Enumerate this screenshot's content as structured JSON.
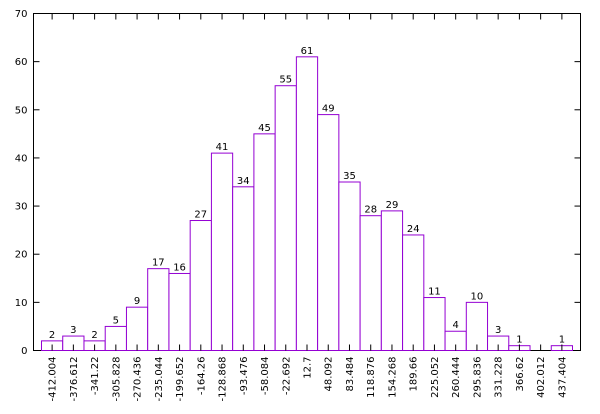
{
  "chart_data": {
    "type": "bar",
    "categories": [
      "-412.004",
      "-376.612",
      "-341.22",
      "-305.828",
      "-270.436",
      "-235.044",
      "-199.652",
      "-164.26",
      "-128.868",
      "-93.476",
      "-58.084",
      "-22.692",
      "12.7",
      "48.092",
      "83.484",
      "118.876",
      "154.268",
      "189.66",
      "225.052",
      "260.444",
      "295.836",
      "331.228",
      "366.62",
      "402.012",
      "437.404"
    ],
    "values": [
      2,
      3,
      2,
      5,
      9,
      17,
      16,
      27,
      41,
      34,
      45,
      55,
      61,
      49,
      35,
      28,
      29,
      24,
      11,
      4,
      10,
      3,
      1,
      0,
      1
    ],
    "data_labels": [
      "2",
      "3",
      "2",
      "5",
      "9",
      "17",
      "16",
      "27",
      "41",
      "34",
      "45",
      "55",
      "61",
      "49",
      "35",
      "28",
      "29",
      "24",
      "11",
      "4",
      "10",
      "3",
      "1",
      "",
      "1"
    ],
    "title": "",
    "xlabel": "",
    "ylabel": "",
    "ylim": [
      0,
      70
    ],
    "yticks": [
      0,
      10,
      20,
      30,
      40,
      50,
      60,
      70
    ],
    "grid": false,
    "bar_color": "#9400d3",
    "bar_fill": "#ffffff"
  }
}
